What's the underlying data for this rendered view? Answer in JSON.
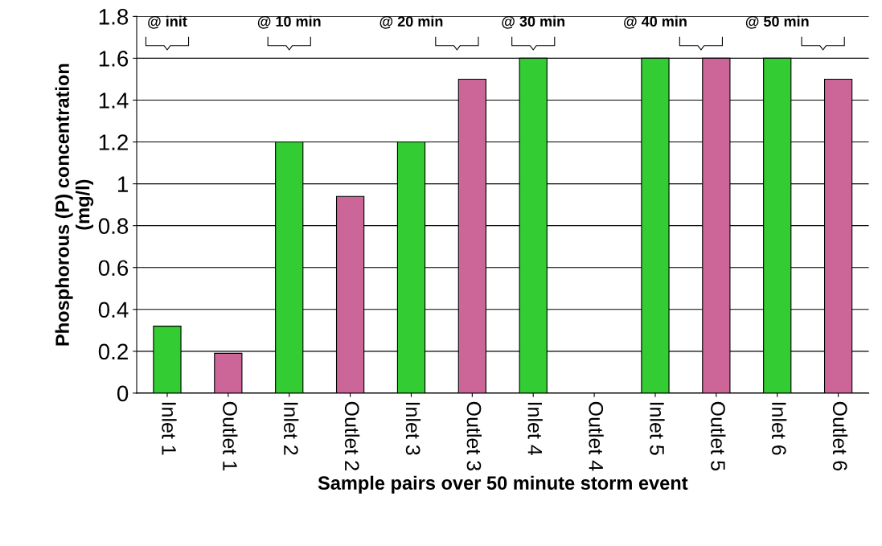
{
  "chart_data": {
    "type": "bar",
    "xlabel": "Sample pairs over 50 minute storm event",
    "ylabel": "Phosphorous (P) concentration\n(mg/l)",
    "categories": [
      "Inlet 1",
      "Outlet 1",
      "Inlet 2",
      "Outlet 2",
      "Inlet 3",
      "Outlet 3",
      "Inlet 4",
      "Outlet 4",
      "Inlet 5",
      "Outlet 5",
      "Inlet 6",
      "Outlet 6"
    ],
    "values": [
      0.32,
      0.19,
      1.2,
      0.94,
      1.2,
      1.5,
      1.6,
      null,
      1.6,
      1.6,
      1.6,
      1.5
    ],
    "colors": [
      "#33cc33",
      "#cc6699",
      "#33cc33",
      "#cc6699",
      "#33cc33",
      "#cc6699",
      "#33cc33",
      "#cc6699",
      "#33cc33",
      "#cc6699",
      "#33cc33",
      "#cc6699"
    ],
    "ylim": [
      0,
      1.8
    ],
    "yticks": [
      0,
      0.2,
      0.4,
      0.6,
      0.8,
      1,
      1.2,
      1.4,
      1.6,
      1.8
    ],
    "grid": "y",
    "annotations": [
      "@ init",
      "@ 10 min",
      "@ 20 min",
      "@ 30 min",
      "@ 40 min",
      "@ 50 min"
    ]
  }
}
